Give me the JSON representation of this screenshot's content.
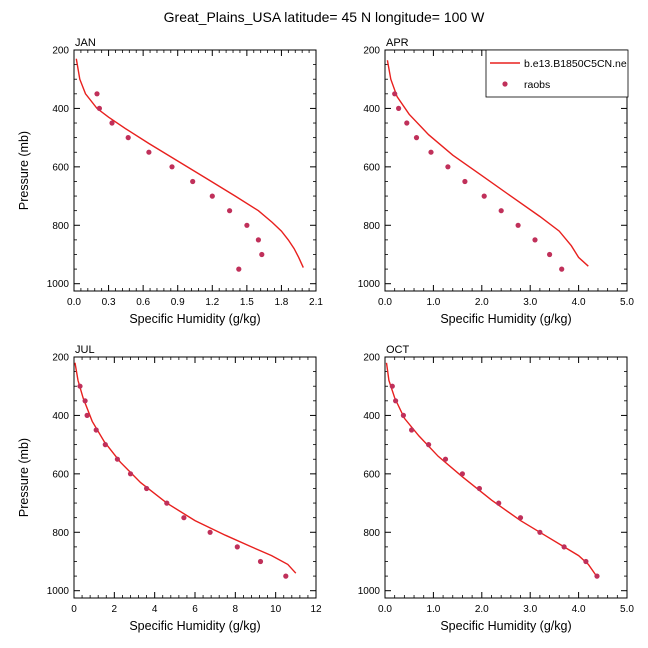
{
  "title": "Great_Plains_USA  latitude= 45 N longitude= 100 W",
  "legend": {
    "line_label": "b.e13.B1850C5CN.ne",
    "marker_label": "raobs"
  },
  "colors": {
    "model_line": "#e8201e",
    "raobs_marker": "#c0305a",
    "axis": "#000000"
  },
  "chart_data": [
    {
      "type": "line",
      "panel_label": "JAN",
      "xlabel": "Specific Humidity (g/kg)",
      "ylabel": "Pressure (mb)",
      "xlim": [
        0,
        2.1
      ],
      "ylim": [
        200,
        1025
      ],
      "y_inverted": true,
      "xticks": [
        "0.0",
        "0.3",
        "0.6",
        "0.9",
        "1.2",
        "1.5",
        "1.8",
        "2.1"
      ],
      "yticks": [
        "200",
        "400",
        "600",
        "800",
        "1000"
      ],
      "series": [
        {
          "name": "b.e13.B1850C5CN.ne",
          "type": "line",
          "x": [
            0.02,
            0.05,
            0.1,
            0.2,
            0.3,
            0.45,
            0.65,
            0.9,
            1.15,
            1.4,
            1.6,
            1.72,
            1.8,
            1.86,
            1.91,
            1.95,
            1.99
          ],
          "y": [
            230,
            300,
            350,
            400,
            430,
            470,
            520,
            580,
            640,
            700,
            750,
            790,
            820,
            850,
            880,
            910,
            945
          ]
        },
        {
          "name": "raobs",
          "type": "scatter",
          "x": [
            0.2,
            0.22,
            0.33,
            0.47,
            0.65,
            0.85,
            1.03,
            1.2,
            1.35,
            1.5,
            1.6,
            1.63,
            1.43
          ],
          "y": [
            350,
            400,
            450,
            500,
            550,
            600,
            650,
            700,
            750,
            800,
            850,
            900,
            950
          ]
        }
      ]
    },
    {
      "type": "line",
      "panel_label": "APR",
      "xlabel": "Specific Humidity (g/kg)",
      "ylabel": "",
      "xlim": [
        0,
        5
      ],
      "ylim": [
        200,
        1025
      ],
      "y_inverted": true,
      "xticks": [
        "0.0",
        "1.0",
        "2.0",
        "3.0",
        "4.0",
        "5.0"
      ],
      "yticks": [
        "200",
        "400",
        "600",
        "800",
        "1000"
      ],
      "series": [
        {
          "name": "b.e13.B1850C5CN.ne",
          "type": "line",
          "x": [
            0.05,
            0.12,
            0.25,
            0.5,
            0.9,
            1.4,
            2.0,
            2.6,
            3.2,
            3.6,
            3.85,
            4.0,
            4.2
          ],
          "y": [
            235,
            300,
            360,
            420,
            490,
            560,
            630,
            700,
            770,
            820,
            870,
            910,
            940
          ]
        },
        {
          "name": "raobs",
          "type": "scatter",
          "x": [
            0.2,
            0.28,
            0.45,
            0.65,
            0.95,
            1.3,
            1.65,
            2.05,
            2.4,
            2.75,
            3.1,
            3.4,
            3.65
          ],
          "y": [
            350,
            400,
            450,
            500,
            550,
            600,
            650,
            700,
            750,
            800,
            850,
            900,
            950
          ]
        }
      ]
    },
    {
      "type": "line",
      "panel_label": "JUL",
      "xlabel": "Specific Humidity (g/kg)",
      "ylabel": "Pressure (mb)",
      "xlim": [
        0,
        12
      ],
      "ylim": [
        200,
        1025
      ],
      "y_inverted": true,
      "xticks": [
        "0",
        "2",
        "4",
        "6",
        "8",
        "10",
        "12"
      ],
      "yticks": [
        "200",
        "400",
        "600",
        "800",
        "1000"
      ],
      "series": [
        {
          "name": "b.e13.B1850C5CN.ne",
          "type": "line",
          "x": [
            0.05,
            0.2,
            0.45,
            0.9,
            1.5,
            2.3,
            3.3,
            4.6,
            6.0,
            7.5,
            8.8,
            9.8,
            10.6,
            11.0
          ],
          "y": [
            220,
            280,
            340,
            420,
            490,
            560,
            630,
            700,
            760,
            810,
            850,
            880,
            910,
            940
          ]
        },
        {
          "name": "raobs",
          "type": "scatter",
          "x": [
            0.3,
            0.55,
            0.65,
            1.1,
            1.55,
            2.15,
            2.8,
            3.6,
            4.6,
            5.45,
            6.75,
            8.1,
            9.25,
            10.5
          ],
          "y": [
            300,
            350,
            400,
            450,
            500,
            550,
            600,
            650,
            700,
            750,
            800,
            850,
            900,
            950
          ]
        }
      ]
    },
    {
      "type": "line",
      "panel_label": "OCT",
      "xlabel": "Specific Humidity (g/kg)",
      "ylabel": "",
      "xlim": [
        0,
        5
      ],
      "ylim": [
        200,
        1025
      ],
      "y_inverted": true,
      "xticks": [
        "0.0",
        "1.0",
        "2.0",
        "3.0",
        "4.0",
        "5.0"
      ],
      "yticks": [
        "200",
        "400",
        "600",
        "800",
        "1000"
      ],
      "series": [
        {
          "name": "b.e13.B1850C5CN.ne",
          "type": "line",
          "x": [
            0.03,
            0.08,
            0.2,
            0.4,
            0.7,
            1.1,
            1.6,
            2.2,
            2.8,
            3.3,
            3.7,
            4.0,
            4.2,
            4.35
          ],
          "y": [
            220,
            280,
            340,
            410,
            470,
            540,
            610,
            690,
            760,
            810,
            850,
            880,
            910,
            945
          ]
        },
        {
          "name": "raobs",
          "type": "scatter",
          "x": [
            0.15,
            0.22,
            0.38,
            0.55,
            0.9,
            1.25,
            1.6,
            1.95,
            2.35,
            2.8,
            3.2,
            3.7,
            4.15,
            4.38
          ],
          "y": [
            300,
            350,
            400,
            450,
            500,
            550,
            600,
            650,
            700,
            750,
            800,
            850,
            900,
            950
          ]
        }
      ]
    }
  ]
}
